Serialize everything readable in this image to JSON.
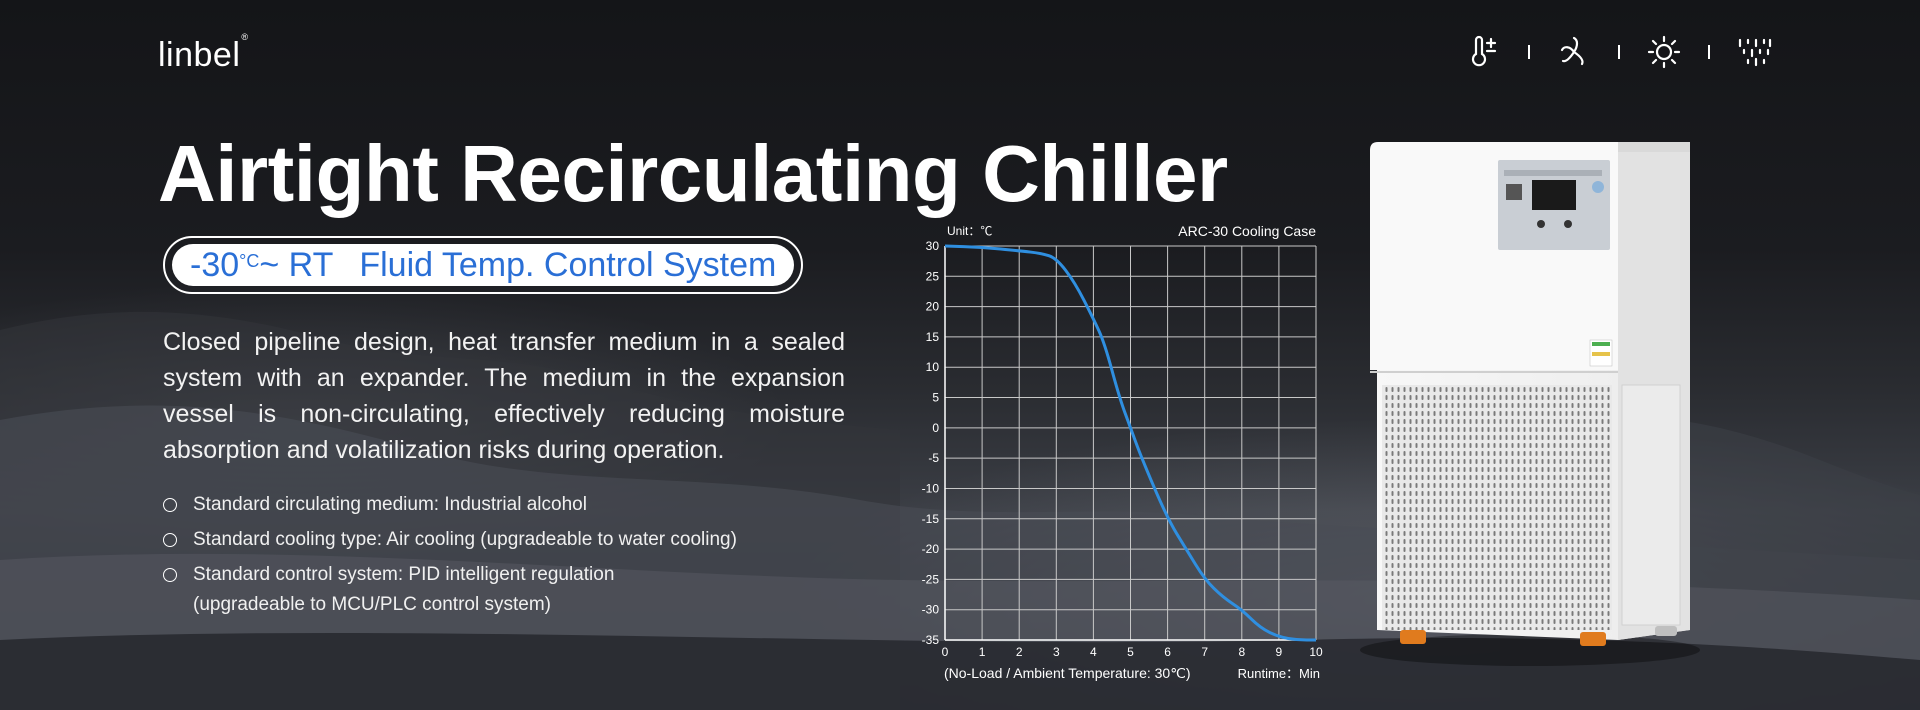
{
  "brand": {
    "logo": "linbel",
    "logo_mark": "®"
  },
  "feature_icons": [
    "thermometer-plus-minus-icon",
    "circulation-fan-icon",
    "sun-gear-icon",
    "sprinkle-icon"
  ],
  "title": "Airtight Recirculating Chiller",
  "temp_range": {
    "low": "-30",
    "unit": "°C",
    "tilde_rt": "~ RT",
    "system": "Fluid Temp. Control System"
  },
  "description": "Closed pipeline design, heat transfer medium in a sealed system with an expander. The medium in the expansion vessel is non-circulating, effectively reducing moisture absorption and volatilization risks during operation.",
  "bullets": [
    {
      "line1": "Standard circulating medium: Industrial alcohol"
    },
    {
      "line1": "Standard cooling type: Air cooling (upgradeable to water cooling)"
    },
    {
      "line1": "Standard control system: PID intelligent regulation",
      "line2": "(upgradeable to MCU/PLC control system)"
    }
  ],
  "colors": {
    "accent_blue": "#2a6fd6",
    "curve_blue": "#2f8fe0"
  },
  "chart_data": {
    "type": "line",
    "title": "ARC-30 Cooling Case",
    "unit_label": "Unit：℃",
    "xlabel": "(No-Load / Ambient Temperature: 30℃)",
    "x_unit_label": "Runtime：Min",
    "xlim": [
      0,
      10
    ],
    "ylim": [
      -35,
      30
    ],
    "x_ticks": [
      "0",
      "1",
      "2",
      "3",
      "4",
      "5",
      "6",
      "7",
      "8",
      "9",
      "10"
    ],
    "y_ticks": [
      "30",
      "25",
      "20",
      "15",
      "10",
      "5",
      "0",
      "-5",
      "-10",
      "-15",
      "-20",
      "-25",
      "-30",
      "-35"
    ],
    "grid": true,
    "series": [
      {
        "x": [
          0,
          1,
          2,
          2.6,
          3,
          3.5,
          4,
          4.3,
          4.7,
          5,
          5.3,
          6,
          6.5,
          7,
          7.5,
          8,
          8.5,
          9,
          9.5,
          10
        ],
        "values": [
          30,
          29.8,
          29.2,
          28.8,
          28,
          24,
          18,
          14,
          5,
          0,
          -5,
          -15,
          -20,
          -25,
          -28,
          -30,
          -33,
          -34.5,
          -35,
          -35
        ]
      }
    ]
  }
}
